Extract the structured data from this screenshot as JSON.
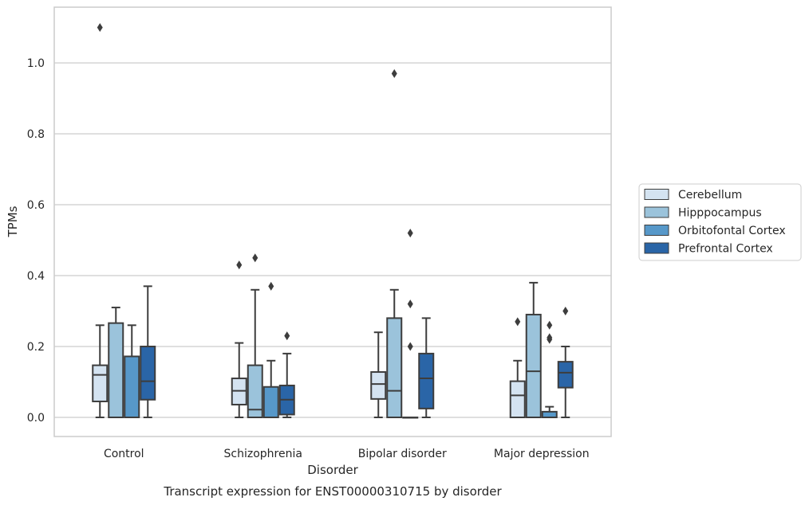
{
  "chart_data": {
    "type": "box",
    "title": "Transcript expression for ENST00000310715 by disorder",
    "xlabel": "Disorder",
    "ylabel": "TPMs",
    "ylim": [
      -0.05,
      1.165
    ],
    "yticks": [
      "0.0",
      "0.2",
      "0.4",
      "0.6",
      "0.8",
      "1.0"
    ],
    "categories": [
      "Control",
      "Schizophrenia",
      "Bipolar disorder",
      "Major depression"
    ],
    "grid": true,
    "legend_position": "right",
    "series": [
      {
        "name": "Cerebellum",
        "color": "#d4e3f1",
        "boxes": [
          {
            "min": 0.0,
            "q1": 0.045,
            "median": 0.12,
            "q3": 0.147,
            "max": 0.26,
            "outliers": [
              1.1
            ]
          },
          {
            "min": 0.0,
            "q1": 0.036,
            "median": 0.075,
            "q3": 0.11,
            "max": 0.21,
            "outliers": [
              0.43
            ]
          },
          {
            "min": 0.0,
            "q1": 0.052,
            "median": 0.094,
            "q3": 0.128,
            "max": 0.24,
            "outliers": []
          },
          {
            "min": 0.0,
            "q1": 0.0,
            "median": 0.062,
            "q3": 0.102,
            "max": 0.16,
            "outliers": [
              0.27
            ]
          }
        ]
      },
      {
        "name": "Hipppocampus",
        "color": "#9bc3db",
        "boxes": [
          {
            "min": 0.0,
            "q1": 0.0,
            "median": 0.0,
            "q3": 0.266,
            "max": 0.31,
            "outliers": []
          },
          {
            "min": 0.0,
            "q1": 0.0,
            "median": 0.022,
            "q3": 0.147,
            "max": 0.36,
            "outliers": [
              0.45
            ]
          },
          {
            "min": 0.0,
            "q1": 0.0,
            "median": 0.075,
            "q3": 0.28,
            "max": 0.36,
            "outliers": [
              0.97
            ]
          },
          {
            "min": 0.0,
            "q1": 0.0,
            "median": 0.13,
            "q3": 0.29,
            "max": 0.38,
            "outliers": []
          }
        ]
      },
      {
        "name": "Orbitofontal Cortex",
        "color": "#5798c9",
        "boxes": [
          {
            "min": 0.0,
            "q1": 0.0,
            "median": 0.0,
            "q3": 0.172,
            "max": 0.26,
            "outliers": []
          },
          {
            "min": 0.0,
            "q1": 0.0,
            "median": 0.0,
            "q3": 0.086,
            "max": 0.16,
            "outliers": [
              0.37
            ]
          },
          {
            "min": 0.0,
            "q1": 0.0,
            "median": 0.0,
            "q3": 0.0,
            "max": 0.0,
            "outliers": [
              0.52,
              0.32,
              0.2
            ]
          },
          {
            "min": 0.0,
            "q1": 0.0,
            "median": 0.0,
            "q3": 0.016,
            "max": 0.03,
            "outliers": [
              0.26,
              0.225,
              0.22
            ]
          }
        ]
      },
      {
        "name": "Prefrontal Cortex",
        "color": "#2a65a7",
        "boxes": [
          {
            "min": 0.0,
            "q1": 0.05,
            "median": 0.102,
            "q3": 0.2,
            "max": 0.37,
            "outliers": []
          },
          {
            "min": 0.0,
            "q1": 0.008,
            "median": 0.05,
            "q3": 0.09,
            "max": 0.18,
            "outliers": [
              0.23
            ]
          },
          {
            "min": 0.0,
            "q1": 0.025,
            "median": 0.11,
            "q3": 0.18,
            "max": 0.28,
            "outliers": []
          },
          {
            "min": 0.0,
            "q1": 0.084,
            "median": 0.126,
            "q3": 0.157,
            "max": 0.2,
            "outliers": [
              0.3
            ]
          }
        ]
      }
    ]
  }
}
